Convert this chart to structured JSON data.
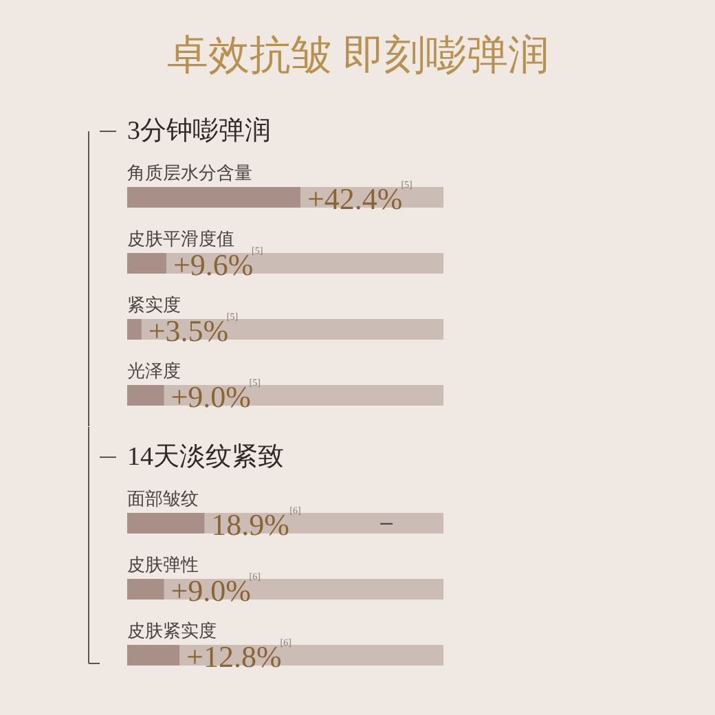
{
  "chart_data": [
    {
      "type": "bar",
      "orientation": "horizontal",
      "title": "卓效抗皱 即刻嘭弹润",
      "subtitle": "3分钟嘭弹润",
      "categories": [
        "角质层水分含量",
        "皮肤平滑度值",
        "紧实度",
        "光泽度"
      ],
      "values": [
        42.4,
        9.6,
        3.5,
        9.0
      ],
      "color": "#a89089",
      "value_labels": [
        "+42.4%",
        "+9.6%",
        "+3.5%",
        "+9.0%"
      ],
      "annotations": [
        "[5]",
        "[5]",
        "[5]",
        "[5]"
      ]
    },
    {
      "type": "bar",
      "orientation": "horizontal",
      "subtitle": "14天淡纹紧致",
      "categories": [
        "面部皱纹",
        "皮肤弹性",
        "皮肤紧实度"
      ],
      "values": [
        18.9,
        9.0,
        12.8
      ],
      "color": "#a89089",
      "value_labels": [
        "18.9%",
        "+9.0%",
        "+12.8%"
      ],
      "annotations": [
        "[6]",
        "[6]",
        "[6]",
        "–"
      ]
    }
  ]
}
